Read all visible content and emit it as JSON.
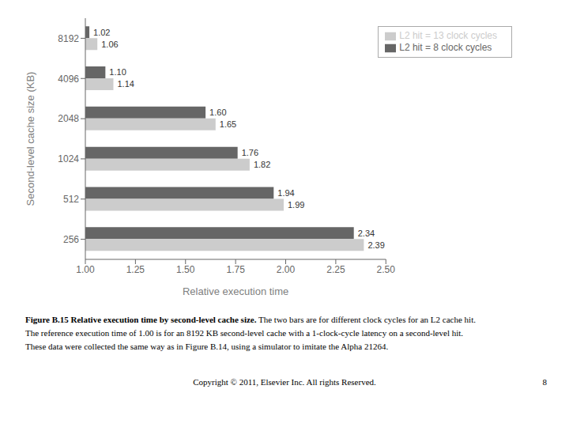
{
  "chart_data": {
    "type": "bar",
    "orientation": "horizontal",
    "categories": [
      "8192",
      "4096",
      "2048",
      "1024",
      "512",
      "256"
    ],
    "series": [
      {
        "name": "L2 hit = 8 clock cycles",
        "color": "#666666",
        "values": [
          1.02,
          1.1,
          1.6,
          1.76,
          1.94,
          2.34
        ],
        "value_labels": [
          "1.02",
          "1.10",
          "1.60",
          "1.76",
          "1.94",
          "2.34"
        ]
      },
      {
        "name": "L2 hit = 13 clock cycles",
        "color": "#cccccc",
        "values": [
          1.06,
          1.14,
          1.65,
          1.82,
          1.99,
          2.39
        ],
        "value_labels": [
          "1.06",
          "1.14",
          "1.65",
          "1.82",
          "1.99",
          "2.39"
        ]
      }
    ],
    "xlabel": "Relative execution time",
    "ylabel": "Second-level cache size (KB)",
    "xlim": [
      1.0,
      2.5
    ],
    "xticks": [
      {
        "value": 1.0,
        "label": "1.00"
      },
      1.25,
      {
        "value": 1.5,
        "label": "1.50"
      },
      1.75,
      {
        "value": 2.0,
        "label": "2.00"
      },
      2.25,
      {
        "value": 2.5,
        "label": "2.50"
      }
    ],
    "data_labels": true,
    "grid": false,
    "legend": "upper right",
    "caption_bold": "Figure B.15 Relative execution time by second-level cache size.",
    "caption_lines": [
      " The two bars are for different clock cycles for an L2 cache hit.",
      "The reference execution time of 1.00 is for an 8192 KB second-level cache with a 1-clock-cycle latency on a second-level hit.",
      "These data were collected the same way as in Figure B.14, using a simulator to imitate the Alpha 21264."
    ],
    "copyright": "Copyright © 2011, Elsevier Inc. All rights Reserved.",
    "page_number": "8"
  }
}
